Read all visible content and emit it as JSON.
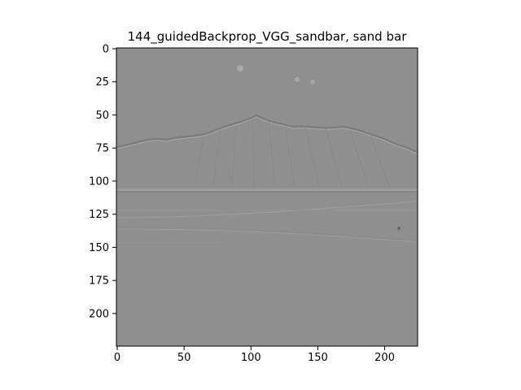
{
  "figure": {
    "title": "144_guidedBackprop_VGG_sandbar, sand bar"
  },
  "image": {
    "description_type": "guided-backprop-saliency",
    "base_color": "#8f8f8f",
    "extent": {
      "x": [
        0,
        224
      ],
      "y": [
        224,
        0
      ]
    }
  },
  "axes": {
    "x_ticks": [
      {
        "value": 0,
        "label": "0"
      },
      {
        "value": 50,
        "label": "50"
      },
      {
        "value": 100,
        "label": "100"
      },
      {
        "value": 150,
        "label": "150"
      },
      {
        "value": 200,
        "label": "200"
      }
    ],
    "y_ticks": [
      {
        "value": 0,
        "label": "0"
      },
      {
        "value": 25,
        "label": "25"
      },
      {
        "value": 50,
        "label": "50"
      },
      {
        "value": 75,
        "label": "75"
      },
      {
        "value": 100,
        "label": "100"
      },
      {
        "value": 125,
        "label": "125"
      },
      {
        "value": 150,
        "label": "150"
      },
      {
        "value": 175,
        "label": "175"
      },
      {
        "value": 200,
        "label": "200"
      }
    ]
  }
}
